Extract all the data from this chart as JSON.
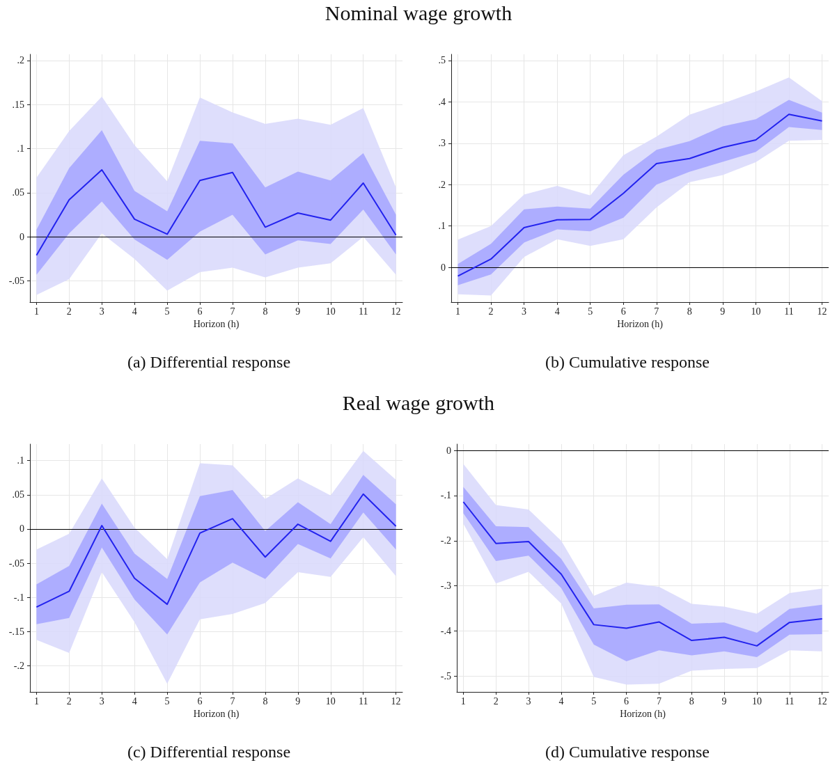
{
  "chart_data": [
    {
      "type": "line",
      "title": "Nominal wage growth",
      "xlabel": "Horizon (h)",
      "annotations": [
        "(a) Differential response"
      ],
      "x": [
        1,
        2,
        3,
        4,
        5,
        6,
        7,
        8,
        9,
        10,
        11,
        12
      ],
      "xlim": [
        0.8,
        12.2
      ],
      "xticks": [
        1,
        2,
        3,
        4,
        5,
        6,
        7,
        8,
        9,
        10,
        11,
        12
      ],
      "ylim": [
        -0.074,
        0.207
      ],
      "yticks": [
        {
          "value": -0.05,
          "label": "-.05"
        },
        {
          "value": 0,
          "label": "0"
        },
        {
          "value": 0.05,
          "label": ".05"
        },
        {
          "value": 0.1,
          "label": ".1"
        },
        {
          "value": 0.15,
          "label": ".15"
        },
        {
          "value": 0.2,
          "label": ".2"
        }
      ],
      "grid": true,
      "ref_lines": [
        {
          "axis": "y",
          "value": 0,
          "color": "#000000"
        }
      ],
      "series": [
        {
          "color": "#d8d8fc",
          "values": [
            null,
            null,
            null,
            null,
            null,
            null,
            null,
            null,
            null,
            null,
            null,
            null
          ],
          "lower": [
            -0.066,
            -0.048,
            0.004,
            -0.025,
            -0.061,
            -0.04,
            -0.035,
            -0.046,
            -0.035,
            -0.03,
            0.0,
            -0.043
          ],
          "upper": [
            0.067,
            0.12,
            0.159,
            0.104,
            0.063,
            0.158,
            0.141,
            0.128,
            0.134,
            0.127,
            0.146,
            0.056
          ]
        },
        {
          "color": "#a5a5ff",
          "values": [
            null,
            null,
            null,
            null,
            null,
            null,
            null,
            null,
            null,
            null,
            null,
            null
          ],
          "lower": [
            -0.043,
            0.004,
            0.04,
            -0.003,
            -0.026,
            0.006,
            0.025,
            -0.02,
            -0.004,
            -0.008,
            0.031,
            -0.02
          ],
          "upper": [
            0.008,
            0.078,
            0.121,
            0.052,
            0.029,
            0.109,
            0.106,
            0.056,
            0.074,
            0.064,
            0.095,
            0.025
          ]
        },
        {
          "color": "#2222ee",
          "values": [
            -0.021,
            0.042,
            0.076,
            0.02,
            0.003,
            0.064,
            0.073,
            0.011,
            0.027,
            0.019,
            0.061,
            0.002
          ]
        }
      ]
    },
    {
      "type": "line",
      "xlabel": "Horizon (h)",
      "annotations": [
        "(b) Cumulative response"
      ],
      "x": [
        1,
        2,
        3,
        4,
        5,
        6,
        7,
        8,
        9,
        10,
        11,
        12
      ],
      "xlim": [
        0.8,
        12.2
      ],
      "xticks": [
        1,
        2,
        3,
        4,
        5,
        6,
        7,
        8,
        9,
        10,
        11,
        12
      ],
      "ylim": [
        -0.084,
        0.515
      ],
      "yticks": [
        {
          "value": 0,
          "label": "0"
        },
        {
          "value": 0.1,
          "label": ".1"
        },
        {
          "value": 0.2,
          "label": ".2"
        },
        {
          "value": 0.3,
          "label": ".3"
        },
        {
          "value": 0.4,
          "label": ".4"
        },
        {
          "value": 0.5,
          "label": ".5"
        }
      ],
      "grid": true,
      "ref_lines": [
        {
          "axis": "y",
          "value": 0,
          "color": "#000000"
        }
      ],
      "series": [
        {
          "color": "#d8d8fc",
          "values": [
            null,
            null,
            null,
            null,
            null,
            null,
            null,
            null,
            null,
            null,
            null,
            null
          ],
          "lower": [
            -0.065,
            -0.068,
            0.025,
            0.068,
            0.052,
            0.068,
            0.145,
            0.206,
            0.223,
            0.254,
            0.306,
            0.308
          ],
          "upper": [
            0.067,
            0.1,
            0.176,
            0.197,
            0.174,
            0.271,
            0.316,
            0.369,
            0.396,
            0.425,
            0.459,
            0.402
          ]
        },
        {
          "color": "#a5a5ff",
          "values": [
            null,
            null,
            null,
            null,
            null,
            null,
            null,
            null,
            null,
            null,
            null,
            null
          ],
          "lower": [
            -0.043,
            -0.017,
            0.06,
            0.092,
            0.087,
            0.12,
            0.2,
            0.231,
            0.255,
            0.279,
            0.339,
            0.332
          ],
          "upper": [
            0.008,
            0.057,
            0.14,
            0.147,
            0.142,
            0.224,
            0.284,
            0.305,
            0.341,
            0.358,
            0.405,
            0.374
          ]
        },
        {
          "color": "#2222ee",
          "values": [
            -0.021,
            0.02,
            0.096,
            0.115,
            0.116,
            0.179,
            0.251,
            0.263,
            0.29,
            0.308,
            0.37,
            0.354
          ]
        }
      ]
    },
    {
      "type": "line",
      "title": "Real wage growth",
      "xlabel": "Horizon (h)",
      "annotations": [
        "(c) Differential response"
      ],
      "x": [
        1,
        2,
        3,
        4,
        5,
        6,
        7,
        8,
        9,
        10,
        11,
        12
      ],
      "xlim": [
        0.8,
        12.2
      ],
      "xticks": [
        1,
        2,
        3,
        4,
        5,
        6,
        7,
        8,
        9,
        10,
        11,
        12
      ],
      "ylim": [
        -0.238,
        0.124
      ],
      "yticks": [
        {
          "value": -0.2,
          "label": "-.2"
        },
        {
          "value": -0.15,
          "label": "-.15"
        },
        {
          "value": -0.1,
          "label": "-.1"
        },
        {
          "value": -0.05,
          "label": "-.05"
        },
        {
          "value": 0,
          "label": "0"
        },
        {
          "value": 0.05,
          "label": ".05"
        },
        {
          "value": 0.1,
          "label": ".1"
        }
      ],
      "grid": true,
      "ref_lines": [
        {
          "axis": "y",
          "value": 0,
          "color": "#000000"
        }
      ],
      "series": [
        {
          "color": "#d8d8fc",
          "values": [
            null,
            null,
            null,
            null,
            null,
            null,
            null,
            null,
            null,
            null,
            null,
            null
          ],
          "lower": [
            -0.162,
            -0.181,
            -0.063,
            -0.136,
            -0.226,
            -0.132,
            -0.124,
            -0.108,
            -0.063,
            -0.07,
            -0.012,
            -0.069
          ],
          "upper": [
            -0.03,
            -0.007,
            0.074,
            0.002,
            -0.044,
            0.096,
            0.093,
            0.044,
            0.074,
            0.049,
            0.114,
            0.072
          ]
        },
        {
          "color": "#a5a5ff",
          "values": [
            null,
            null,
            null,
            null,
            null,
            null,
            null,
            null,
            null,
            null,
            null,
            null
          ],
          "lower": [
            -0.139,
            -0.13,
            -0.027,
            -0.103,
            -0.154,
            -0.078,
            -0.049,
            -0.073,
            -0.022,
            -0.043,
            0.024,
            -0.03
          ],
          "upper": [
            -0.081,
            -0.054,
            0.037,
            -0.036,
            -0.073,
            0.048,
            0.057,
            -0.003,
            0.039,
            0.007,
            0.079,
            0.036
          ]
        },
        {
          "color": "#2222ee",
          "values": [
            -0.114,
            -0.091,
            0.005,
            -0.072,
            -0.11,
            -0.006,
            0.015,
            -0.041,
            0.007,
            -0.018,
            0.051,
            0.004
          ]
        }
      ]
    },
    {
      "type": "line",
      "xlabel": "Horizon (h)",
      "annotations": [
        "(d) Cumulative response"
      ],
      "x": [
        1,
        2,
        3,
        4,
        5,
        6,
        7,
        8,
        9,
        10,
        11,
        12
      ],
      "xlim": [
        0.8,
        12.2
      ],
      "xticks": [
        1,
        2,
        3,
        4,
        5,
        6,
        7,
        8,
        9,
        10,
        11,
        12
      ],
      "ylim": [
        -0.535,
        0.014
      ],
      "yticks": [
        {
          "value": -0.5,
          "label": "-.5"
        },
        {
          "value": -0.4,
          "label": "-.4"
        },
        {
          "value": -0.3,
          "label": "-.3"
        },
        {
          "value": -0.2,
          "label": "-.2"
        },
        {
          "value": -0.1,
          "label": "-.1"
        },
        {
          "value": 0,
          "label": "0"
        }
      ],
      "grid": true,
      "ref_lines": [
        {
          "axis": "y",
          "value": 0,
          "color": "#000000"
        }
      ],
      "series": [
        {
          "color": "#d8d8fc",
          "values": [
            null,
            null,
            null,
            null,
            null,
            null,
            null,
            null,
            null,
            null,
            null,
            null
          ],
          "lower": [
            -0.162,
            -0.295,
            -0.269,
            -0.339,
            -0.502,
            -0.519,
            -0.517,
            -0.488,
            -0.484,
            -0.482,
            -0.443,
            -0.445
          ],
          "upper": [
            -0.03,
            -0.121,
            -0.131,
            -0.2,
            -0.322,
            -0.293,
            -0.302,
            -0.34,
            -0.346,
            -0.362,
            -0.316,
            -0.306
          ]
        },
        {
          "color": "#a5a5ff",
          "values": [
            null,
            null,
            null,
            null,
            null,
            null,
            null,
            null,
            null,
            null,
            null,
            null
          ],
          "lower": [
            -0.139,
            -0.245,
            -0.233,
            -0.305,
            -0.43,
            -0.467,
            -0.443,
            -0.454,
            -0.445,
            -0.458,
            -0.408,
            -0.407
          ],
          "upper": [
            -0.081,
            -0.168,
            -0.17,
            -0.24,
            -0.35,
            -0.342,
            -0.341,
            -0.384,
            -0.381,
            -0.404,
            -0.351,
            -0.342
          ]
        },
        {
          "color": "#2222ee",
          "values": [
            -0.114,
            -0.206,
            -0.202,
            -0.274,
            -0.386,
            -0.394,
            -0.38,
            -0.421,
            -0.414,
            -0.433,
            -0.381,
            -0.373
          ]
        }
      ]
    }
  ]
}
